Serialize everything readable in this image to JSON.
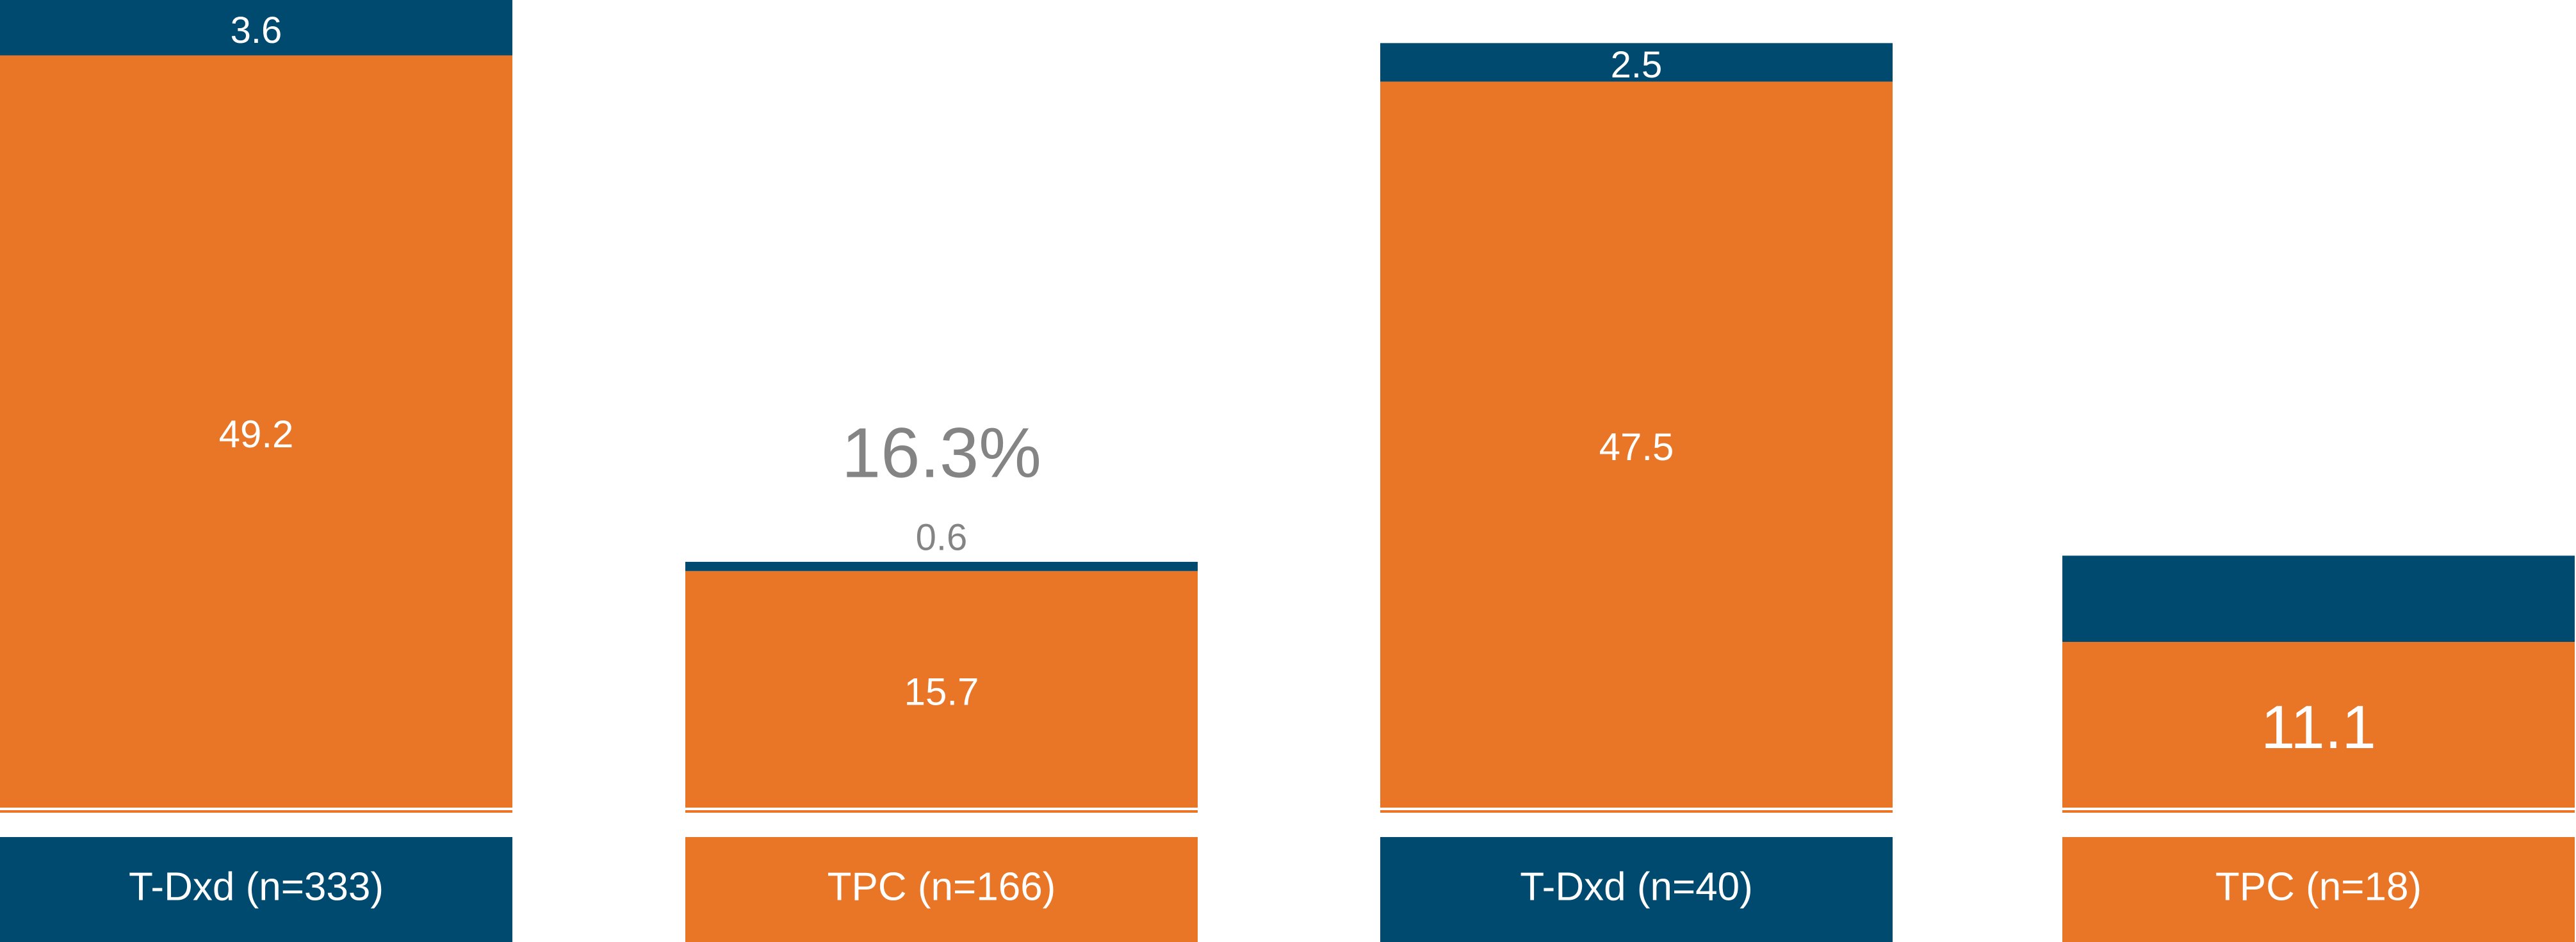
{
  "colors": {
    "navy": "#004a70",
    "orange": "#e97627",
    "white": "#ffffff",
    "gray_text": "#848484"
  },
  "chart_data": {
    "type": "bar",
    "stacked": true,
    "categories": [
      "T-Dxd (n=333)",
      "TPC (n=166)",
      "T-Dxd (n=40)",
      "TPC (n=18)"
    ],
    "category_colors": [
      "#004a70",
      "#e97627",
      "#004a70",
      "#e97627"
    ],
    "series": [
      {
        "color": "#e97627",
        "values": [
          49.2,
          15.7,
          47.5,
          11.1
        ],
        "labels": [
          "49.2",
          "15.7",
          "47.5",
          "11.1"
        ]
      },
      {
        "color": "#004a70",
        "values": [
          3.6,
          0.6,
          2.5,
          5.6
        ],
        "labels": [
          "3.6",
          "0.6",
          "2.5",
          ""
        ]
      }
    ],
    "total_labels": [
      "",
      "16.3%",
      "",
      ""
    ],
    "ylim": [
      0,
      52.8
    ],
    "grid": false,
    "legend": "none",
    "xlabel": "",
    "ylabel": ""
  }
}
